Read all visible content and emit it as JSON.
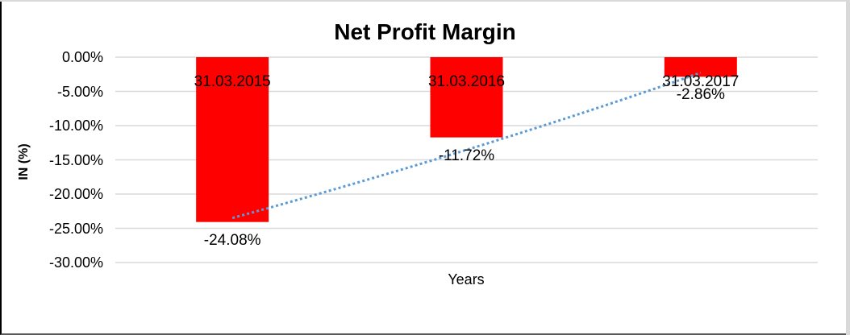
{
  "chart_data": {
    "type": "bar",
    "title": "Net Profit Margin",
    "xlabel": "Years",
    "ylabel": "IN (%)",
    "categories": [
      "31.03.2015",
      "31.03.2016",
      "31.03.2017"
    ],
    "values": [
      -24.08,
      -11.72,
      -2.86
    ],
    "data_labels": [
      "-24.08%",
      "-11.72%",
      "-2.86%"
    ],
    "y_ticks": [
      {
        "label": "0.00%",
        "value": 0
      },
      {
        "label": "-5.00%",
        "value": -5
      },
      {
        "label": "-10.00%",
        "value": -10
      },
      {
        "label": "-15.00%",
        "value": -15
      },
      {
        "label": "-20.00%",
        "value": -20
      },
      {
        "label": "-25.00%",
        "value": -25
      },
      {
        "label": "-30.00%",
        "value": -30
      }
    ],
    "ylim": [
      -30,
      0
    ],
    "grid": true,
    "legend": "none",
    "colors": {
      "bar": "#ff0000",
      "trendline": "#5b9bd5",
      "gridline": "#d9d9d9",
      "text": "#000000"
    },
    "trendline": {
      "style": "dotted",
      "from_category": "31.03.2015",
      "to_category": "31.03.2017"
    }
  }
}
